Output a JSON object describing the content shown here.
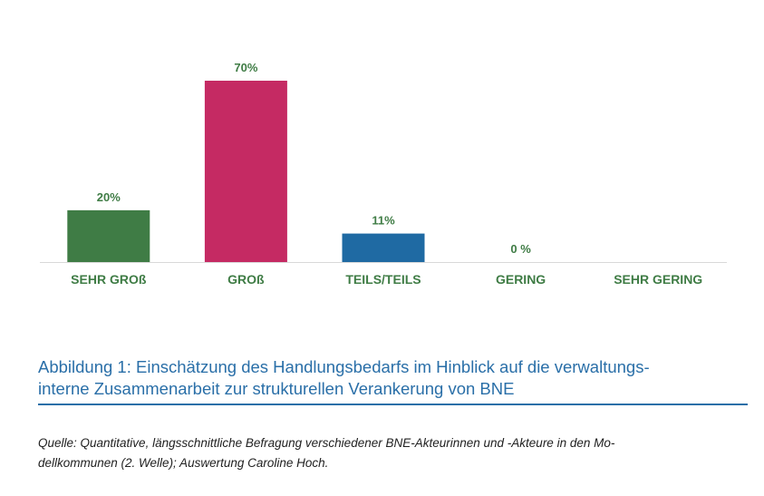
{
  "chart_data": {
    "type": "bar",
    "categories": [
      "SEHR GROß",
      "GROß",
      "TEILS/TEILS",
      "GERING",
      "SEHR GERING"
    ],
    "values": [
      20,
      70,
      11,
      0,
      null
    ],
    "value_labels": [
      "20%",
      "70%",
      "11%",
      "0 %",
      ""
    ],
    "colors": [
      "#3f7c45",
      "#c52a63",
      "#1f6aa3",
      "#3f7c45",
      "#3f7c45"
    ],
    "ylim": [
      0,
      70
    ],
    "grid": false,
    "legend": "none"
  },
  "caption": {
    "line1": "Abbildung 1: Einschätzung des Handlungsbedarfs im Hinblick auf die verwaltungs-",
    "line2": "interne Zusammenarbeit zur strukturellen Verankerung von BNE"
  },
  "source": {
    "line1": "Quelle: Quantitative, längsschnittliche Befragung verschiedener BNE-Akteurinnen und -Akteure in den Mo-",
    "line2": "dellkommunen (2. Welle); Auswertung Caroline Hoch."
  }
}
